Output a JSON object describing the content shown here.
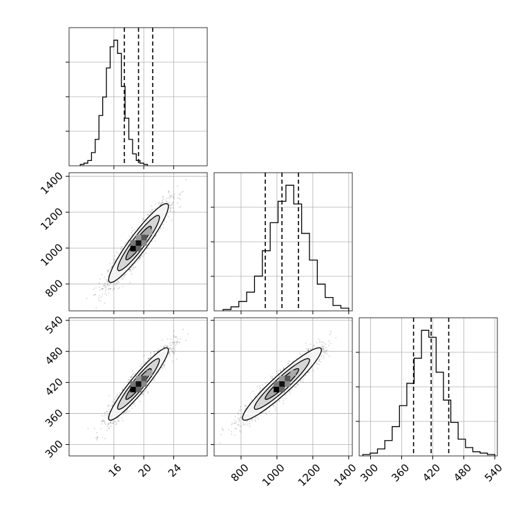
{
  "colors": {
    "axes": "#000000",
    "grid": "#b0b0b0",
    "points": "#000000",
    "background": "#ffffff"
  },
  "chart_data": {
    "type": "corner",
    "grid": true,
    "parameters": [
      {
        "key": "p0",
        "lim": [
          10,
          28.5
        ],
        "ticks": [
          16,
          20,
          24
        ],
        "quantiles": [
          17.4,
          19.3,
          21.2
        ],
        "hist": [
          1,
          2,
          4,
          10,
          20,
          38,
          52,
          74,
          90,
          95,
          85,
          60,
          36,
          20,
          9,
          4,
          2,
          1
        ],
        "hist_edges": [
          11.5,
          20.5
        ]
      },
      {
        "key": "p1",
        "lim": [
          650,
          1420
        ],
        "ticks": [
          800,
          1000,
          1200,
          1400
        ],
        "quantiles": [
          935,
          1028,
          1120
        ],
        "hist": [
          1,
          3,
          7,
          14,
          26,
          45,
          66,
          82,
          94,
          80,
          58,
          38,
          20,
          10,
          4,
          2
        ],
        "hist_edges": [
          700,
          1400
        ]
      },
      {
        "key": "p2",
        "lim": [
          278,
          545
        ],
        "ticks": [
          300,
          360,
          420,
          480,
          540
        ],
        "quantiles": [
          383,
          417,
          451
        ],
        "hist": [
          1,
          2,
          5,
          11,
          21,
          36,
          52,
          70,
          90,
          85,
          60,
          40,
          24,
          12,
          6,
          3,
          2,
          1
        ],
        "hist_edges": [
          285,
          540
        ]
      }
    ],
    "pairs": [
      {
        "x": "p0",
        "y": "p1",
        "center": [
          19.3,
          1028
        ],
        "sd": [
          2.0,
          110
        ],
        "rho": 0.93,
        "n": 1800
      },
      {
        "x": "p0",
        "y": "p2",
        "center": [
          19.3,
          417
        ],
        "sd": [
          2.0,
          35
        ],
        "rho": 0.94,
        "n": 1800
      },
      {
        "x": "p1",
        "y": "p2",
        "center": [
          1028,
          417
        ],
        "sd": [
          110,
          35
        ],
        "rho": 0.94,
        "n": 1800
      }
    ]
  }
}
